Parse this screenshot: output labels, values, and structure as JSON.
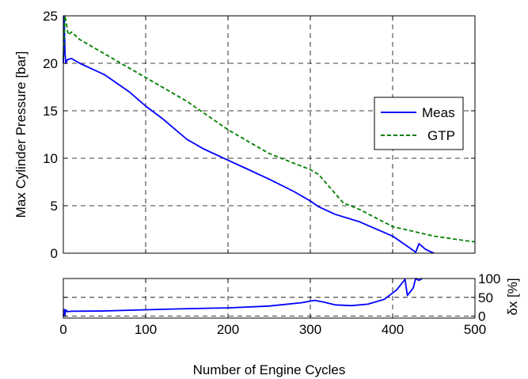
{
  "chart_data": [
    {
      "type": "line",
      "ylabel": "Max Cylinder Pressure [bar]",
      "xlabel": "",
      "xlim": [
        0,
        500
      ],
      "ylim": [
        0,
        25
      ],
      "xticks": [
        0,
        100,
        200,
        300,
        400,
        500
      ],
      "yticks": [
        0,
        5,
        10,
        15,
        20,
        25
      ],
      "ytick_labels": [
        "0",
        "5",
        "10",
        "15",
        "20",
        "25"
      ],
      "grid": true,
      "legend_position": "right",
      "series": [
        {
          "name": "Meas",
          "color": "#0000ff",
          "style": "solid",
          "x": [
            0,
            1,
            2,
            3,
            5,
            10,
            20,
            50,
            80,
            100,
            120,
            150,
            170,
            200,
            220,
            250,
            280,
            300,
            310,
            330,
            360,
            400,
            420,
            428,
            432,
            440,
            450
          ],
          "y": [
            20,
            25,
            21,
            20,
            20.4,
            20.5,
            20,
            18.8,
            17,
            15.5,
            14.2,
            12,
            11,
            9.8,
            9,
            7.8,
            6.5,
            5.5,
            4.9,
            4.1,
            3.3,
            1.8,
            0.6,
            0.1,
            1.0,
            0.4,
            0
          ]
        },
        {
          "name": "GTP",
          "color": "#008000",
          "style": "dashed",
          "x": [
            0,
            2,
            4,
            6,
            10,
            20,
            50,
            100,
            150,
            200,
            250,
            300,
            310,
            320,
            340,
            360,
            400,
            450,
            490,
            500
          ],
          "y": [
            20.5,
            25,
            24,
            23,
            23.3,
            22.5,
            21,
            18.5,
            16,
            13,
            10.5,
            8.8,
            8.3,
            7.3,
            5.3,
            4.6,
            2.8,
            1.8,
            1.3,
            1.2
          ]
        }
      ]
    },
    {
      "type": "line",
      "xlabel": "Number of Engine Cycles",
      "ylabel": "δx [%]",
      "xlim": [
        0,
        500
      ],
      "ylim": [
        -5,
        100
      ],
      "xticks": [
        0,
        100,
        200,
        300,
        400,
        500
      ],
      "yticks": [
        0,
        50,
        100
      ],
      "ytick_labels": [
        "0",
        "50",
        "100"
      ],
      "yaxis_side": "right",
      "grid": true,
      "series": [
        {
          "color": "#0000ff",
          "style": "solid",
          "x": [
            0,
            1,
            2,
            3,
            5,
            10,
            50,
            100,
            150,
            200,
            250,
            290,
            305,
            315,
            330,
            350,
            370,
            390,
            405,
            415,
            418,
            425,
            428,
            432,
            436
          ],
          "y": [
            0,
            18,
            3,
            17,
            12,
            13,
            14,
            17,
            20,
            22,
            27,
            36,
            42,
            38,
            30,
            28,
            32,
            45,
            70,
            98,
            55,
            75,
            100,
            95,
            100
          ]
        }
      ]
    }
  ]
}
